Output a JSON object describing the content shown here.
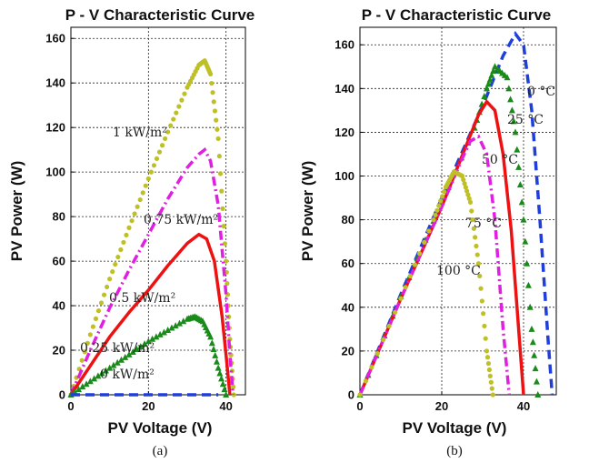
{
  "chart_data": [
    {
      "type": "line",
      "title": "P - V Characteristic Curve",
      "xlabel": "PV Voltage (V)",
      "ylabel": "PV Power (W)",
      "caption": "(a)",
      "xlim": [
        0,
        45
      ],
      "ylim": [
        0,
        165
      ],
      "xticks": [
        0,
        20,
        40
      ],
      "yticks": [
        0,
        20,
        40,
        60,
        80,
        100,
        120,
        140,
        160
      ],
      "grid": true,
      "series": [
        {
          "name": "1 kW/m²",
          "label_text": "1  kW/m²",
          "color": "#bfbf26",
          "style": "dotted-circles",
          "x": [
            0,
            5,
            10,
            15,
            20,
            25,
            30,
            33,
            34.5,
            36,
            38,
            40,
            41,
            42
          ],
          "y": [
            0,
            27,
            52,
            75,
            97,
            118,
            138,
            148,
            150,
            144,
            115,
            60,
            25,
            0
          ]
        },
        {
          "name": "0.75 kW/m²",
          "label_text": "0.75  kW/m²",
          "color": "#e020e0",
          "style": "dash-dot",
          "x": [
            0,
            5,
            10,
            15,
            20,
            25,
            30,
            33,
            34.5,
            36,
            38,
            40,
            41,
            41.8
          ],
          "y": [
            0,
            20,
            39,
            56,
            72,
            88,
            102,
            108,
            110,
            105,
            85,
            45,
            18,
            0
          ]
        },
        {
          "name": "0.5 kW/m²",
          "label_text": "0.5  kW/m²",
          "color": "#ee1111",
          "style": "solid",
          "x": [
            0,
            5,
            10,
            15,
            20,
            25,
            30,
            33,
            35,
            37,
            39,
            40,
            41
          ],
          "y": [
            0,
            13,
            26,
            37,
            47,
            58,
            68,
            72,
            70,
            60,
            35,
            18,
            0
          ]
        },
        {
          "name": "0.25 kW/m²",
          "label_text": "0.25  kW/m²",
          "color": "#1a8a1a",
          "style": "triangles",
          "x": [
            0,
            5,
            10,
            15,
            20,
            25,
            30,
            32,
            34,
            36,
            38,
            40
          ],
          "y": [
            0,
            6,
            12,
            18,
            24,
            29,
            34,
            35,
            33,
            26,
            12,
            0
          ]
        },
        {
          "name": "0 kW/m²",
          "label_text": "0  kW/m²",
          "color": "#1f3fdd",
          "style": "dashed",
          "x": [
            0,
            38
          ],
          "y": [
            0,
            0
          ]
        }
      ]
    },
    {
      "type": "line",
      "title": "P - V Characteristic Curve",
      "xlabel": "PV Voltage (V)",
      "ylabel": "PV Power (W)",
      "caption": "(b)",
      "xlim": [
        0,
        48
      ],
      "ylim": [
        0,
        168
      ],
      "xticks": [
        0,
        20,
        40
      ],
      "yticks": [
        0,
        20,
        40,
        60,
        80,
        100,
        120,
        140,
        160
      ],
      "grid": true,
      "series": [
        {
          "name": "0 °C",
          "label_text": "0 °C",
          "color": "#1f3fdd",
          "style": "dashed",
          "x": [
            0,
            10,
            20,
            30,
            35,
            38,
            40,
            42,
            44,
            46,
            47
          ],
          "y": [
            0,
            46,
            90,
            132,
            155,
            165,
            160,
            130,
            80,
            25,
            0
          ]
        },
        {
          "name": "25 °C",
          "label_text": "25 °C",
          "color": "#1a8a1a",
          "style": "triangles",
          "x": [
            0,
            10,
            20,
            28,
            31,
            33,
            36,
            38,
            40,
            42,
            43.5
          ],
          "y": [
            0,
            45,
            88,
            122,
            140,
            150,
            145,
            120,
            80,
            30,
            0
          ]
        },
        {
          "name": "50 °C",
          "label_text": "50 °C",
          "color": "#ee1111",
          "style": "solid",
          "x": [
            0,
            10,
            20,
            26,
            29,
            31,
            33,
            35,
            37,
            39,
            40
          ],
          "y": [
            0,
            44,
            86,
            114,
            128,
            134,
            130,
            110,
            75,
            25,
            0
          ]
        },
        {
          "name": "75 °C",
          "label_text": "75 °C",
          "color": "#e020e0",
          "style": "dash-dot",
          "x": [
            0,
            10,
            20,
            25,
            27,
            29,
            31,
            33,
            35,
            36.5
          ],
          "y": [
            0,
            44,
            86,
            108,
            116,
            118,
            110,
            80,
            30,
            0
          ]
        },
        {
          "name": "100 °C",
          "label_text": "100 °C",
          "color": "#bfbf26",
          "style": "dotted-circles",
          "x": [
            0,
            10,
            18,
            21,
            23,
            25,
            27,
            29,
            31,
            32.5
          ],
          "y": [
            0,
            44,
            80,
            95,
            102,
            100,
            88,
            60,
            20,
            0
          ]
        }
      ]
    }
  ]
}
